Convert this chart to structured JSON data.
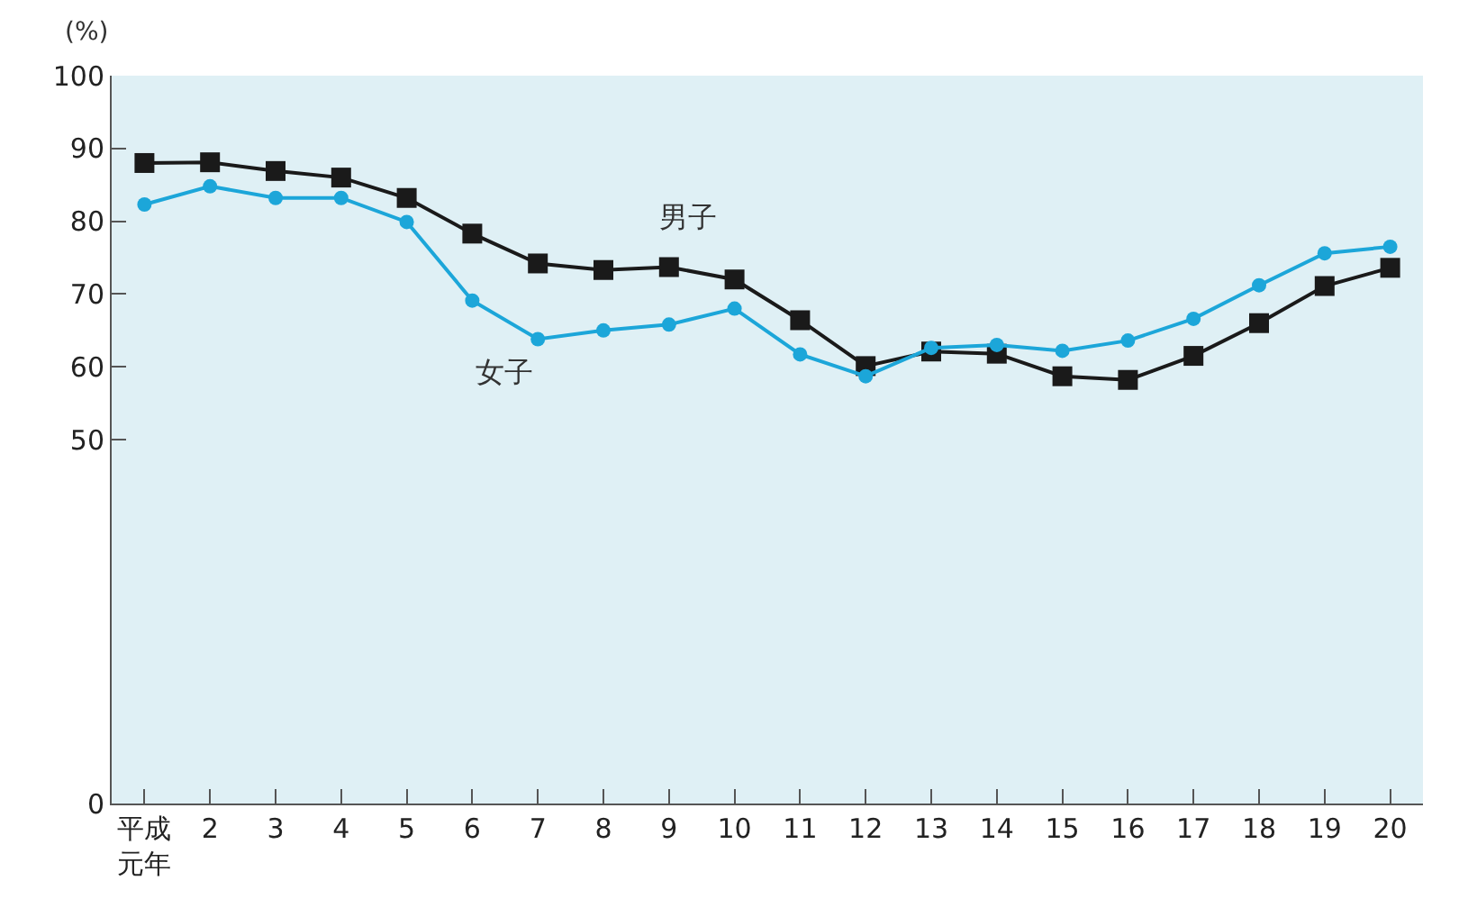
{
  "chart_data": {
    "type": "line",
    "ylabel": "(%)",
    "categories": [
      "平成元年",
      "2",
      "3",
      "4",
      "5",
      "6",
      "7",
      "8",
      "9",
      "10",
      "11",
      "12",
      "13",
      "14",
      "15",
      "16",
      "17",
      "18",
      "19",
      "20"
    ],
    "series": [
      {
        "name": "男子",
        "color": "#1a1a1a",
        "marker": "square",
        "values": [
          88.0,
          88.1,
          86.9,
          86.0,
          83.2,
          78.3,
          74.2,
          73.3,
          73.7,
          72.0,
          66.4,
          60.1,
          62.1,
          61.8,
          58.7,
          58.2,
          61.5,
          66.0,
          71.1,
          73.6
        ]
      },
      {
        "name": "女子",
        "color": "#1ca6d9",
        "marker": "circle",
        "values": [
          82.3,
          84.8,
          83.2,
          83.2,
          79.9,
          69.1,
          63.8,
          65.0,
          65.8,
          68.0,
          61.7,
          58.7,
          62.6,
          63.0,
          62.2,
          63.6,
          66.6,
          71.2,
          75.6,
          76.5
        ]
      }
    ],
    "ylim": [
      0,
      100
    ],
    "yticks": [
      0,
      50,
      60,
      70,
      80,
      90,
      100
    ],
    "grid": false,
    "legend": false,
    "line_style": "solid"
  }
}
